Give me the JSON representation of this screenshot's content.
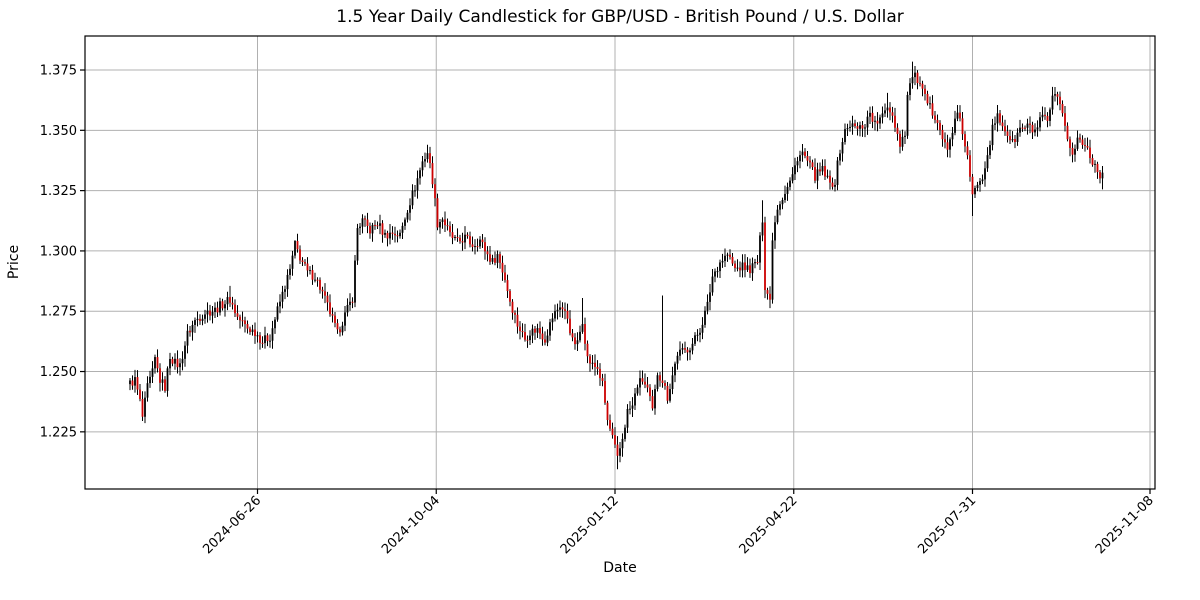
{
  "title": "1.5 Year Daily Candlestick for GBP/USD - British Pound / U.S. Dollar",
  "chart_data": {
    "type": "candlestick",
    "title": "1.5 Year Daily Candlestick for GBP/USD - British Pound / U.S. Dollar",
    "xlabel": "Date",
    "ylabel": "Price",
    "x_encoding": "trading-day index; 390 daily candles spanning ~1.5 years",
    "xlim": [
      -18,
      410
    ],
    "ylim": [
      1.2013,
      1.3891
    ],
    "grid": true,
    "yticks": [
      1.225,
      1.25,
      1.275,
      1.3,
      1.325,
      1.35,
      1.375
    ],
    "xticks": [
      {
        "i": 51,
        "label": "2024-06-26"
      },
      {
        "i": 122.5,
        "label": "2024-10-04"
      },
      {
        "i": 194,
        "label": "2025-01-12"
      },
      {
        "i": 265.5,
        "label": "2025-04-22"
      },
      {
        "i": 337,
        "label": "2025-07-31"
      },
      {
        "i": 408,
        "label": "2025-11-08"
      }
    ],
    "colors": {
      "up_body": "#000000",
      "down_body": "#cc0000",
      "wick": "#000000",
      "grid": "#b0b0b0",
      "axis": "#000000",
      "background": "#ffffff"
    },
    "n_candles": 390,
    "close_anchors": [
      [
        0,
        1.245
      ],
      [
        2,
        1.2465
      ],
      [
        4,
        1.2375
      ],
      [
        5,
        1.231
      ],
      [
        7,
        1.2435
      ],
      [
        9,
        1.2495
      ],
      [
        10,
        1.255
      ],
      [
        12,
        1.2465
      ],
      [
        14,
        1.2435
      ],
      [
        16,
        1.2565
      ],
      [
        18,
        1.2535
      ],
      [
        20,
        1.2525
      ],
      [
        23,
        1.2655
      ],
      [
        26,
        1.271
      ],
      [
        30,
        1.2745
      ],
      [
        34,
        1.2755
      ],
      [
        37,
        1.278
      ],
      [
        40,
        1.28
      ],
      [
        43,
        1.2725
      ],
      [
        47,
        1.268
      ],
      [
        50,
        1.2665
      ],
      [
        53,
        1.2625
      ],
      [
        56,
        1.2645
      ],
      [
        59,
        1.2755
      ],
      [
        62,
        1.2855
      ],
      [
        64,
        1.292
      ],
      [
        66,
        1.3025
      ],
      [
        68,
        1.2975
      ],
      [
        71,
        1.291
      ],
      [
        74,
        1.2895
      ],
      [
        77,
        1.2825
      ],
      [
        80,
        1.2745
      ],
      [
        83,
        1.2655
      ],
      [
        86,
        1.2735
      ],
      [
        89,
        1.2805
      ],
      [
        91,
        1.3095
      ],
      [
        93,
        1.3125
      ],
      [
        96,
        1.3085
      ],
      [
        99,
        1.3115
      ],
      [
        102,
        1.3065
      ],
      [
        105,
        1.3075
      ],
      [
        108,
        1.3065
      ],
      [
        111,
        1.3175
      ],
      [
        114,
        1.3265
      ],
      [
        117,
        1.337
      ],
      [
        119,
        1.341
      ],
      [
        121,
        1.3295
      ],
      [
        123,
        1.3115
      ],
      [
        125,
        1.3135
      ],
      [
        128,
        1.3065
      ],
      [
        131,
        1.3035
      ],
      [
        134,
        1.3055
      ],
      [
        137,
        1.3025
      ],
      [
        140,
        1.3045
      ],
      [
        143,
        1.2985
      ],
      [
        145,
        1.2955
      ],
      [
        147,
        1.2985
      ],
      [
        150,
        1.2885
      ],
      [
        152,
        1.2795
      ],
      [
        155,
        1.2695
      ],
      [
        158,
        1.2635
      ],
      [
        160,
        1.2665
      ],
      [
        163,
        1.2675
      ],
      [
        166,
        1.2635
      ],
      [
        169,
        1.2725
      ],
      [
        172,
        1.2775
      ],
      [
        175,
        1.2725
      ],
      [
        177,
        1.2625
      ],
      [
        179,
        1.2615
      ],
      [
        181,
        1.2715
      ],
      [
        183,
        1.2555
      ],
      [
        185,
        1.2525
      ],
      [
        187,
        1.2515
      ],
      [
        189,
        1.2445
      ],
      [
        191,
        1.2295
      ],
      [
        193,
        1.2225
      ],
      [
        195,
        1.2135
      ],
      [
        197,
        1.2225
      ],
      [
        199,
        1.2335
      ],
      [
        201,
        1.2355
      ],
      [
        203,
        1.2445
      ],
      [
        205,
        1.2465
      ],
      [
        207,
        1.2425
      ],
      [
        209,
        1.2335
      ],
      [
        211,
        1.2495
      ],
      [
        213,
        1.2465
      ],
      [
        215,
        1.2395
      ],
      [
        217,
        1.2485
      ],
      [
        219,
        1.2575
      ],
      [
        222,
        1.2585
      ],
      [
        225,
        1.2615
      ],
      [
        228,
        1.2675
      ],
      [
        231,
        1.2775
      ],
      [
        233,
        1.2895
      ],
      [
        236,
        1.2955
      ],
      [
        239,
        1.2985
      ],
      [
        242,
        1.2925
      ],
      [
        245,
        1.2935
      ],
      [
        248,
        1.2925
      ],
      [
        251,
        1.2955
      ],
      [
        253,
        1.3135
      ],
      [
        254,
        1.2855
      ],
      [
        256,
        1.2795
      ],
      [
        257,
        1.306
      ],
      [
        259,
        1.3185
      ],
      [
        261,
        1.3225
      ],
      [
        263,
        1.3265
      ],
      [
        265,
        1.331
      ],
      [
        267,
        1.339
      ],
      [
        269,
        1.3405
      ],
      [
        271,
        1.337
      ],
      [
        274,
        1.331
      ],
      [
        277,
        1.3335
      ],
      [
        280,
        1.3275
      ],
      [
        282,
        1.329
      ],
      [
        284,
        1.342
      ],
      [
        286,
        1.3495
      ],
      [
        288,
        1.3525
      ],
      [
        291,
        1.3505
      ],
      [
        294,
        1.3525
      ],
      [
        296,
        1.3575
      ],
      [
        298,
        1.3525
      ],
      [
        301,
        1.3555
      ],
      [
        303,
        1.3605
      ],
      [
        305,
        1.3565
      ],
      [
        308,
        1.3445
      ],
      [
        310,
        1.3495
      ],
      [
        311,
        1.3645
      ],
      [
        313,
        1.373
      ],
      [
        315,
        1.371
      ],
      [
        317,
        1.3655
      ],
      [
        319,
        1.361
      ],
      [
        321,
        1.3575
      ],
      [
        323,
        1.355
      ],
      [
        325,
        1.3465
      ],
      [
        327,
        1.3415
      ],
      [
        329,
        1.3505
      ],
      [
        331,
        1.3565
      ],
      [
        333,
        1.3495
      ],
      [
        335,
        1.3385
      ],
      [
        337,
        1.322
      ],
      [
        339,
        1.3285
      ],
      [
        341,
        1.3315
      ],
      [
        343,
        1.3405
      ],
      [
        345,
        1.3505
      ],
      [
        347,
        1.3555
      ],
      [
        350,
        1.3505
      ],
      [
        353,
        1.3445
      ],
      [
        356,
        1.3505
      ],
      [
        359,
        1.3515
      ],
      [
        362,
        1.3495
      ],
      [
        365,
        1.3555
      ],
      [
        367,
        1.3525
      ],
      [
        369,
        1.364
      ],
      [
        371,
        1.3625
      ],
      [
        373,
        1.3555
      ],
      [
        375,
        1.3475
      ],
      [
        377,
        1.3395
      ],
      [
        379,
        1.3465
      ],
      [
        381,
        1.3445
      ],
      [
        383,
        1.3425
      ],
      [
        385,
        1.3375
      ],
      [
        387,
        1.3335
      ],
      [
        389,
        1.3305
      ]
    ],
    "wick_overrides": [
      {
        "i": 5,
        "l": 1.2295
      },
      {
        "i": 40,
        "h": 1.2855
      },
      {
        "i": 66,
        "h": 1.3045
      },
      {
        "i": 119,
        "h": 1.344
      },
      {
        "i": 181,
        "h": 1.2805
      },
      {
        "i": 195,
        "l": 1.2095
      },
      {
        "i": 213,
        "h": 1.2815
      },
      {
        "i": 253,
        "h": 1.321
      },
      {
        "i": 303,
        "h": 1.3655
      },
      {
        "i": 313,
        "h": 1.3785
      },
      {
        "i": 331,
        "h": 1.3605
      },
      {
        "i": 337,
        "l": 1.3145
      },
      {
        "i": 347,
        "h": 1.3605
      },
      {
        "i": 369,
        "h": 1.368
      },
      {
        "i": 389,
        "l": 1.3255
      }
    ]
  }
}
